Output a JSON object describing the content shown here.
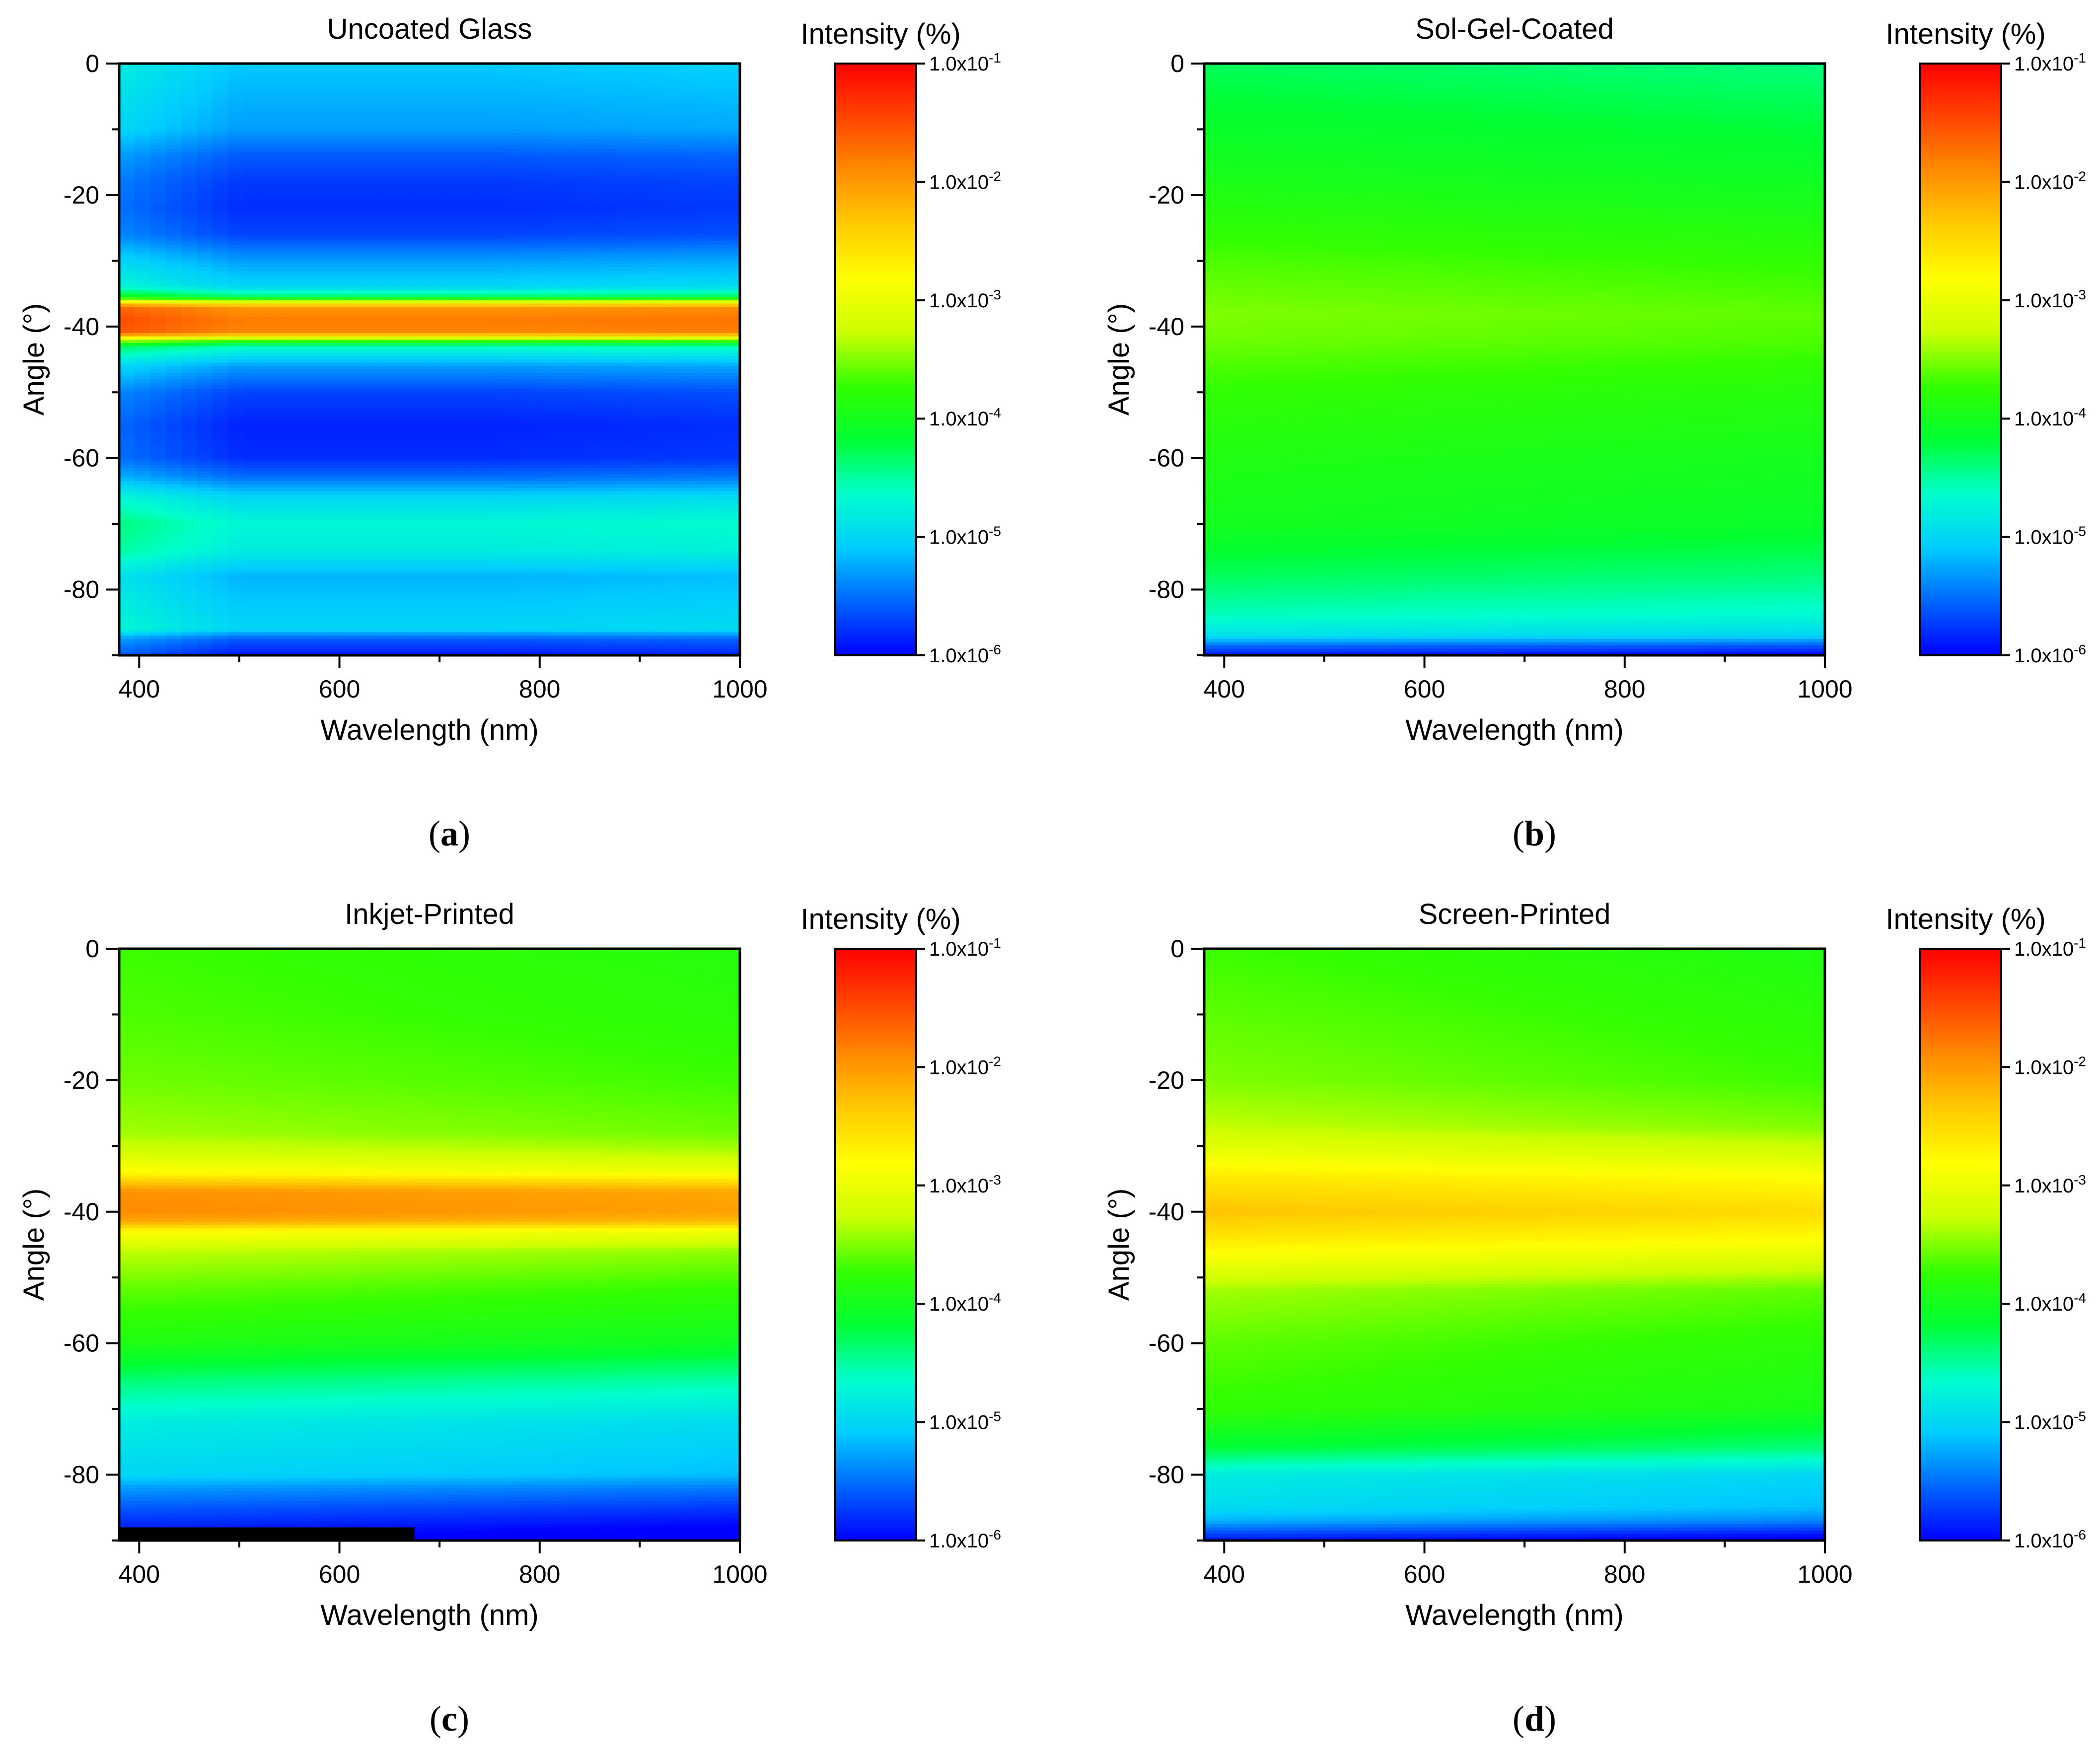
{
  "figure": {
    "panel_captions": [
      {
        "open": "(",
        "letter": "a",
        "close": ")"
      },
      {
        "open": "(",
        "letter": "b",
        "close": ")"
      },
      {
        "open": "(",
        "letter": "c",
        "close": ")"
      },
      {
        "open": "(",
        "letter": "d",
        "close": ")"
      }
    ]
  },
  "colormap": [
    "#0000ff",
    "#0066ff",
    "#00ccff",
    "#00ffcc",
    "#00ff33",
    "#33ff00",
    "#ccff00",
    "#ffff00",
    "#ffcc00",
    "#ff8c00",
    "#ff4400",
    "#ff0000"
  ],
  "chart_data": [
    {
      "type": "heatmap",
      "title": "Uncoated Glass",
      "xlabel": "Wavelength (nm)",
      "ylabel": "Angle (°)",
      "xlim": [
        380,
        1000
      ],
      "ylim": [
        -90,
        0
      ],
      "x_ticks": [
        400,
        600,
        800,
        1000
      ],
      "y_ticks": [
        0,
        -20,
        -40,
        -60,
        -80
      ],
      "colorbar": {
        "label": "Intensity (%)",
        "scale": "log",
        "range": [
          1e-06,
          0.1
        ],
        "ticks": [
          {
            "base": "1.0x10",
            "exp": "-1"
          },
          {
            "base": "1.0x10",
            "exp": "-2"
          },
          {
            "base": "1.0x10",
            "exp": "-3"
          },
          {
            "base": "1.0x10",
            "exp": "-4"
          },
          {
            "base": "1.0x10",
            "exp": "-5"
          },
          {
            "base": "1.0x10",
            "exp": "-6"
          }
        ]
      },
      "angle_profile_log10_intensity": [
        {
          "angle": 0,
          "value": -5.1
        },
        {
          "angle": -5,
          "value": -5.2
        },
        {
          "angle": -10,
          "value": -5.3
        },
        {
          "angle": -14,
          "value": -5.6
        },
        {
          "angle": -18,
          "value": -5.75
        },
        {
          "angle": -22,
          "value": -5.8
        },
        {
          "angle": -26,
          "value": -5.7
        },
        {
          "angle": -30,
          "value": -5.3
        },
        {
          "angle": -34,
          "value": -5.0
        },
        {
          "angle": -35.5,
          "value": -4.3
        },
        {
          "angle": -37,
          "value": -2.0
        },
        {
          "angle": -39,
          "value": -1.8
        },
        {
          "angle": -41,
          "value": -1.9
        },
        {
          "angle": -42,
          "value": -3.5
        },
        {
          "angle": -43,
          "value": -4.6
        },
        {
          "angle": -46,
          "value": -5.3
        },
        {
          "angle": -50,
          "value": -5.7
        },
        {
          "angle": -55,
          "value": -5.85
        },
        {
          "angle": -60,
          "value": -5.8
        },
        {
          "angle": -63,
          "value": -5.5
        },
        {
          "angle": -66,
          "value": -5.0
        },
        {
          "angle": -70,
          "value": -4.7
        },
        {
          "angle": -74,
          "value": -4.8
        },
        {
          "angle": -78,
          "value": -5.2
        },
        {
          "angle": -82,
          "value": -5.1
        },
        {
          "angle": -86,
          "value": -5.0
        },
        {
          "angle": -87.5,
          "value": -5.6
        },
        {
          "angle": -90,
          "value": -5.9
        }
      ],
      "wavelength_trend_log10": [
        {
          "wavelength": 380,
          "delta": 0.3
        },
        {
          "wavelength": 500,
          "delta": 0.0
        },
        {
          "wavelength": 750,
          "delta": 0.0
        },
        {
          "wavelength": 1000,
          "delta": 0.05
        }
      ]
    },
    {
      "type": "heatmap",
      "title": "Sol-Gel-Coated",
      "xlabel": "Wavelength (nm)",
      "ylabel": "Angle (°)",
      "xlim": [
        380,
        1000
      ],
      "ylim": [
        -90,
        0
      ],
      "x_ticks": [
        400,
        600,
        800,
        1000
      ],
      "y_ticks": [
        0,
        -20,
        -40,
        -60,
        -80
      ],
      "colorbar": {
        "label": "Intensity (%)",
        "scale": "log",
        "range": [
          1e-06,
          0.1
        ],
        "ticks": [
          {
            "base": "1.0x10",
            "exp": "-1"
          },
          {
            "base": "1.0x10",
            "exp": "-2"
          },
          {
            "base": "1.0x10",
            "exp": "-3"
          },
          {
            "base": "1.0x10",
            "exp": "-4"
          },
          {
            "base": "1.0x10",
            "exp": "-5"
          },
          {
            "base": "1.0x10",
            "exp": "-6"
          }
        ]
      },
      "angle_profile_log10_intensity": [
        {
          "angle": 0,
          "value": -4.3
        },
        {
          "angle": -10,
          "value": -4.1
        },
        {
          "angle": -20,
          "value": -3.9
        },
        {
          "angle": -30,
          "value": -3.65
        },
        {
          "angle": -38,
          "value": -3.5
        },
        {
          "angle": -42,
          "value": -3.55
        },
        {
          "angle": -50,
          "value": -3.75
        },
        {
          "angle": -60,
          "value": -3.9
        },
        {
          "angle": -70,
          "value": -4.0
        },
        {
          "angle": -78,
          "value": -4.3
        },
        {
          "angle": -84,
          "value": -4.6
        },
        {
          "angle": -87,
          "value": -4.9
        },
        {
          "angle": -88.5,
          "value": -5.5
        },
        {
          "angle": -90,
          "value": -5.9
        }
      ],
      "wavelength_trend_log10": [
        {
          "wavelength": 380,
          "delta": 0.0
        },
        {
          "wavelength": 1000,
          "delta": -0.1
        }
      ]
    },
    {
      "type": "heatmap",
      "title": "Inkjet-Printed",
      "xlabel": "Wavelength (nm)",
      "ylabel": "Angle (°)",
      "xlim": [
        380,
        1000
      ],
      "ylim": [
        -90,
        0
      ],
      "x_ticks": [
        400,
        600,
        800,
        1000
      ],
      "y_ticks": [
        0,
        -20,
        -40,
        -60,
        -80
      ],
      "colorbar": {
        "label": "Intensity (%)",
        "scale": "log",
        "range": [
          1e-06,
          0.1
        ],
        "ticks": [
          {
            "base": "1.0x10",
            "exp": "-1"
          },
          {
            "base": "1.0x10",
            "exp": "-2"
          },
          {
            "base": "1.0x10",
            "exp": "-3"
          },
          {
            "base": "1.0x10",
            "exp": "-4"
          },
          {
            "base": "1.0x10",
            "exp": "-5"
          },
          {
            "base": "1.0x10",
            "exp": "-6"
          }
        ]
      },
      "angle_profile_log10_intensity": [
        {
          "angle": 0,
          "value": -3.7
        },
        {
          "angle": -10,
          "value": -3.65
        },
        {
          "angle": -20,
          "value": -3.55
        },
        {
          "angle": -28,
          "value": -3.4
        },
        {
          "angle": -31,
          "value": -3.2
        },
        {
          "angle": -34,
          "value": -2.8
        },
        {
          "angle": -36,
          "value": -2.2
        },
        {
          "angle": -37,
          "value": -1.95
        },
        {
          "angle": -40,
          "value": -1.9
        },
        {
          "angle": -41.5,
          "value": -2.1
        },
        {
          "angle": -43,
          "value": -2.8
        },
        {
          "angle": -46,
          "value": -3.3
        },
        {
          "angle": -52,
          "value": -3.6
        },
        {
          "angle": -60,
          "value": -3.9
        },
        {
          "angle": -66,
          "value": -4.4
        },
        {
          "angle": -72,
          "value": -4.8
        },
        {
          "angle": -80,
          "value": -5.0
        },
        {
          "angle": -82,
          "value": -5.3
        },
        {
          "angle": -85,
          "value": -5.6
        },
        {
          "angle": -88,
          "value": -5.85
        },
        {
          "angle": -90,
          "value": -6.0
        }
      ],
      "wavelength_trend_log10": [
        {
          "wavelength": 380,
          "delta": 0.0
        },
        {
          "wavelength": 1000,
          "delta": -0.15
        }
      ],
      "masked_region": {
        "wavelength": [
          380,
          675
        ],
        "angle": [
          -90,
          -88
        ],
        "color": "#000000"
      }
    },
    {
      "type": "heatmap",
      "title": "Screen-Printed",
      "xlabel": "Wavelength (nm)",
      "ylabel": "Angle (°)",
      "xlim": [
        380,
        1000
      ],
      "ylim": [
        -90,
        0
      ],
      "x_ticks": [
        400,
        600,
        800,
        1000
      ],
      "y_ticks": [
        0,
        -20,
        -40,
        -60,
        -80
      ],
      "colorbar": {
        "label": "Intensity (%)",
        "scale": "log",
        "range": [
          1e-06,
          0.1
        ],
        "ticks": [
          {
            "base": "1.0x10",
            "exp": "-1"
          },
          {
            "base": "1.0x10",
            "exp": "-2"
          },
          {
            "base": "1.0x10",
            "exp": "-3"
          },
          {
            "base": "1.0x10",
            "exp": "-4"
          },
          {
            "base": "1.0x10",
            "exp": "-5"
          },
          {
            "base": "1.0x10",
            "exp": "-6"
          }
        ]
      },
      "angle_profile_log10_intensity": [
        {
          "angle": 0,
          "value": -3.7
        },
        {
          "angle": -10,
          "value": -3.6
        },
        {
          "angle": -20,
          "value": -3.5
        },
        {
          "angle": -27,
          "value": -3.3
        },
        {
          "angle": -31,
          "value": -3.0
        },
        {
          "angle": -35,
          "value": -2.6
        },
        {
          "angle": -40,
          "value": -2.3
        },
        {
          "angle": -44,
          "value": -2.6
        },
        {
          "angle": -48,
          "value": -3.0
        },
        {
          "angle": -52,
          "value": -3.4
        },
        {
          "angle": -60,
          "value": -3.6
        },
        {
          "angle": -70,
          "value": -3.75
        },
        {
          "angle": -76,
          "value": -4.2
        },
        {
          "angle": -80,
          "value": -4.8
        },
        {
          "angle": -85,
          "value": -4.95
        },
        {
          "angle": -87,
          "value": -5.2
        },
        {
          "angle": -89,
          "value": -5.7
        },
        {
          "angle": -90,
          "value": -5.9
        }
      ],
      "wavelength_trend_log10": [
        {
          "wavelength": 380,
          "delta": 0.0
        },
        {
          "wavelength": 1000,
          "delta": -0.2
        }
      ]
    }
  ]
}
